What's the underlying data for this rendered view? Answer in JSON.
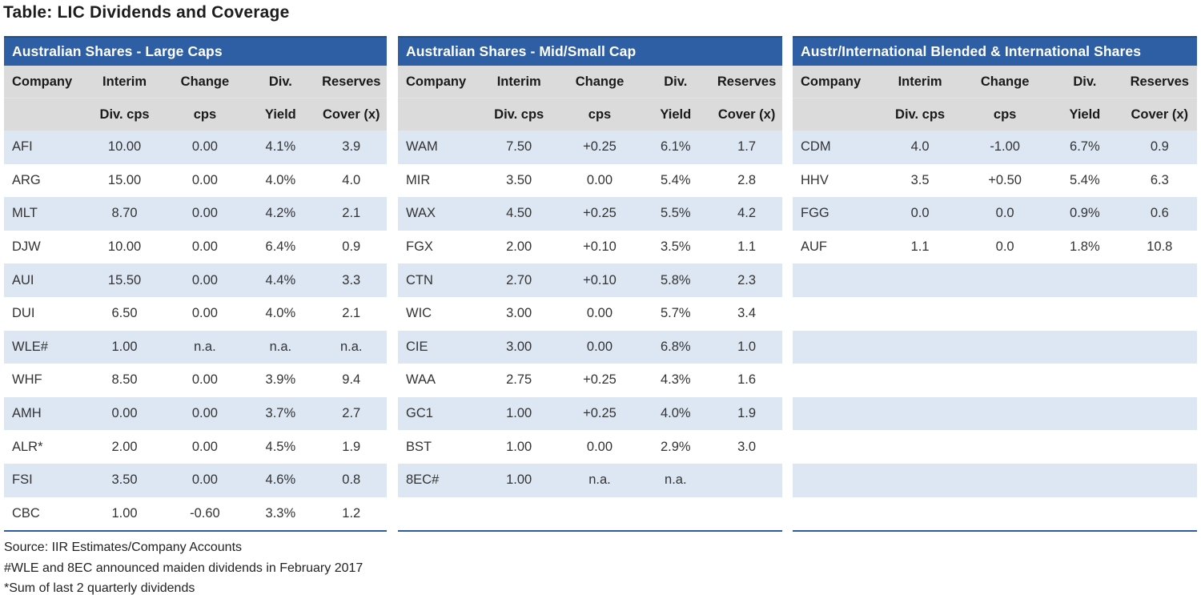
{
  "title": "Table: LIC Dividends and Coverage",
  "column_headers": {
    "row1": [
      "Company",
      "Interim",
      "Change",
      "Div.",
      "Reserves"
    ],
    "row2": [
      "",
      "Div. cps",
      "cps",
      "Yield",
      "Cover (x)"
    ]
  },
  "tables": [
    {
      "header": "Australian Shares - Large Caps",
      "rows": [
        [
          "AFI",
          "10.00",
          "0.00",
          "4.1%",
          "3.9"
        ],
        [
          "ARG",
          "15.00",
          "0.00",
          "4.0%",
          "4.0"
        ],
        [
          "MLT",
          "8.70",
          "0.00",
          "4.2%",
          "2.1"
        ],
        [
          "DJW",
          "10.00",
          "0.00",
          "6.4%",
          "0.9"
        ],
        [
          "AUI",
          "15.50",
          "0.00",
          "4.4%",
          "3.3"
        ],
        [
          "DUI",
          "6.50",
          "0.00",
          "4.0%",
          "2.1"
        ],
        [
          "WLE#",
          "1.00",
          "n.a.",
          "n.a.",
          "n.a."
        ],
        [
          "WHF",
          "8.50",
          "0.00",
          "3.9%",
          "9.4"
        ],
        [
          "AMH",
          "0.00",
          "0.00",
          "3.7%",
          "2.7"
        ],
        [
          "ALR*",
          "2.00",
          "0.00",
          "4.5%",
          "1.9"
        ],
        [
          "FSI",
          "3.50",
          "0.00",
          "4.6%",
          "0.8"
        ],
        [
          "CBC",
          "1.00",
          "-0.60",
          "3.3%",
          "1.2"
        ]
      ],
      "empty_rows": 0
    },
    {
      "header": "Australian Shares - Mid/Small Cap",
      "rows": [
        [
          "WAM",
          "7.50",
          "+0.25",
          "6.1%",
          "1.7"
        ],
        [
          "MIR",
          "3.50",
          "0.00",
          "5.4%",
          "2.8"
        ],
        [
          "WAX",
          "4.50",
          "+0.25",
          "5.5%",
          "4.2"
        ],
        [
          "FGX",
          "2.00",
          "+0.10",
          "3.5%",
          "1.1"
        ],
        [
          "CTN",
          "2.70",
          "+0.10",
          "5.8%",
          "2.3"
        ],
        [
          "WIC",
          "3.00",
          "0.00",
          "5.7%",
          "3.4"
        ],
        [
          "CIE",
          "3.00",
          "0.00",
          "6.8%",
          "1.0"
        ],
        [
          "WAA",
          "2.75",
          "+0.25",
          "4.3%",
          "1.6"
        ],
        [
          "GC1",
          "1.00",
          "+0.25",
          "4.0%",
          "1.9"
        ],
        [
          "BST",
          "1.00",
          "0.00",
          "2.9%",
          "3.0"
        ],
        [
          "8EC#",
          "1.00",
          "n.a.",
          "n.a.",
          ""
        ]
      ],
      "empty_rows": 1
    },
    {
      "header": "Austr/International Blended & International Shares",
      "rows": [
        [
          "CDM",
          "4.0",
          "-1.00",
          "6.7%",
          "0.9"
        ],
        [
          "HHV",
          "3.5",
          "+0.50",
          "5.4%",
          "6.3"
        ],
        [
          "FGG",
          "0.0",
          "0.0",
          "0.9%",
          "0.6"
        ],
        [
          "AUF",
          "1.1",
          "0.0",
          "1.8%",
          "10.8"
        ]
      ],
      "empty_rows": 8
    }
  ],
  "footnotes": [
    "Source: IIR Estimates/Company Accounts",
    "#WLE and 8EC announced maiden dividends in February 2017",
    "*Sum of last 2 quarterly dividends"
  ],
  "colors": {
    "section_header_bg": "#2E5FA5",
    "section_header_border": "#1F4E8C",
    "section_header_text": "#FFFFFF",
    "column_header_bg": "#DBDBDB",
    "row_stripe_blue": "#DCE7F3",
    "row_stripe_white": "#FFFFFF",
    "table_bottom_border": "#2C5C9E",
    "text": "#333333"
  }
}
